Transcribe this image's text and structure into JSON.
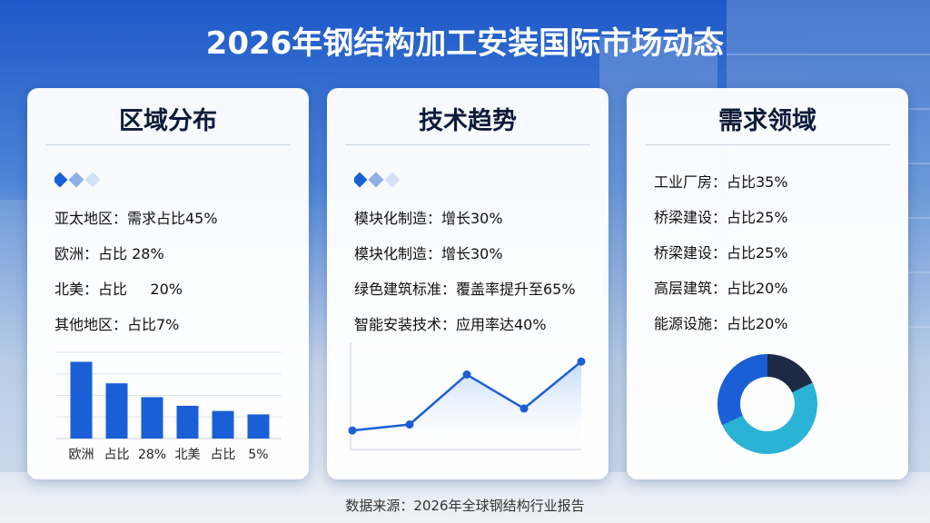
{
  "title": "2026年钢结构加工安装国际市场动态",
  "cards": [
    {
      "heading": "区域分布",
      "items": [
        "亚太地区：需求占比45%",
        "欧洲：占比 28%",
        "北美：占比     20%",
        "其他地区：占比7%"
      ],
      "chart": {
        "type": "bar",
        "categories": [
          "欧洲",
          "占比",
          "28%",
          "北美",
          "占比",
          "5%"
        ],
        "values": [
          89,
          64,
          48,
          38,
          32,
          28
        ],
        "color": "#1a5fd6",
        "ylim": [
          0,
          100
        ],
        "yticks": [
          25,
          50,
          75,
          100
        ],
        "grid": true
      }
    },
    {
      "heading": "技术趋势",
      "items": [
        "模块化制造：增长30%",
        "模块化制造：增长30%",
        "绿色建筑标准：覆盖率提升至65%",
        "智能安装技术：应用率达40%"
      ],
      "chart": {
        "type": "line",
        "values": [
          19,
          25,
          75,
          41,
          88
        ],
        "color": "#1a5fd6",
        "ylim": [
          0,
          100
        ]
      }
    },
    {
      "heading": "需求领域",
      "items": [
        "工业厂房：占比35%",
        "桥梁建设：占比25%",
        "桥梁建设：占比25%",
        "高层建筑：占比20%",
        "能源设施：占比20%"
      ],
      "chart": {
        "type": "pie",
        "values": [
          18,
          50,
          32
        ],
        "colors": [
          "#1e2a44",
          "#2bb3d6",
          "#1a5fd6"
        ]
      }
    }
  ],
  "footer": "数据来源：2026年全球钢结构行业报告"
}
